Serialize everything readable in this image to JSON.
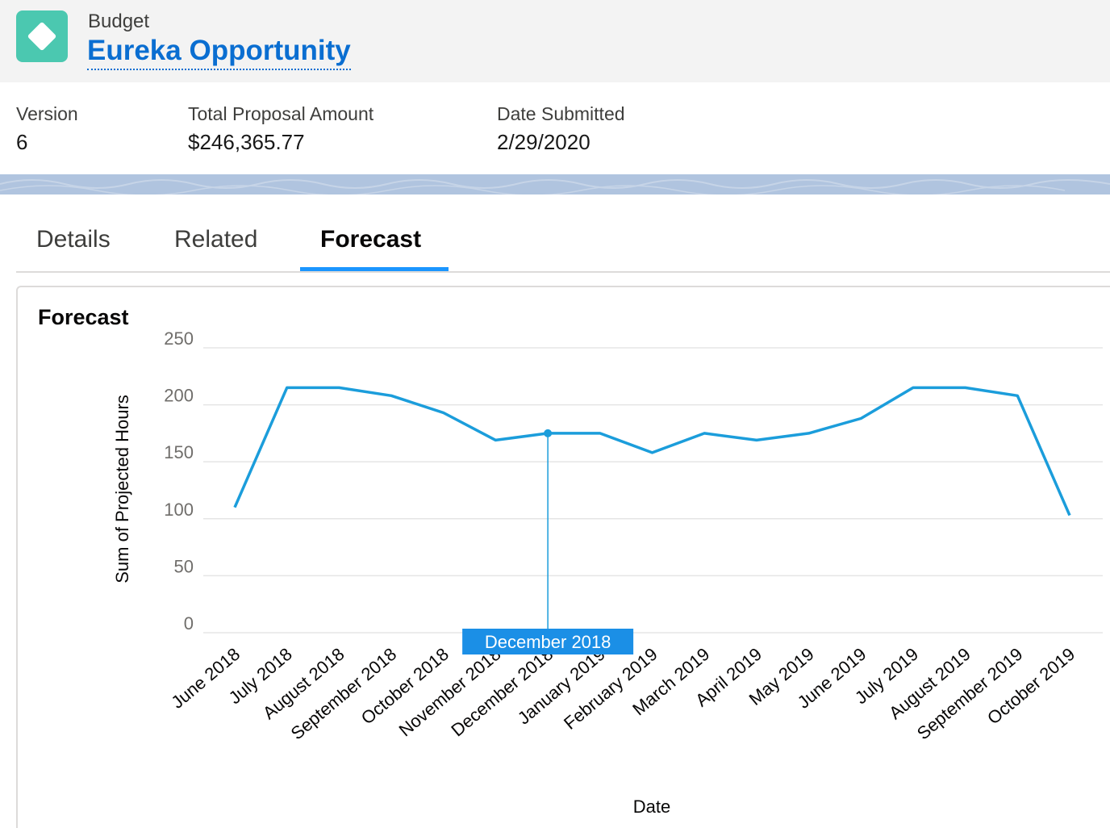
{
  "header": {
    "object_label": "Budget",
    "record_title": "Eureka Opportunity",
    "icon": "diamond-icon",
    "icon_color": "#4bc8b0"
  },
  "highlights": [
    {
      "label": "Version",
      "value": "6"
    },
    {
      "label": "Total Proposal Amount",
      "value": "$246,365.77"
    },
    {
      "label": "Date Submitted",
      "value": "2/29/2020"
    }
  ],
  "tabs": [
    {
      "label": "Details"
    },
    {
      "label": "Related"
    },
    {
      "label": "Forecast",
      "active": true
    }
  ],
  "card": {
    "title": "Forecast"
  },
  "chart_data": {
    "type": "line",
    "title": "Forecast",
    "xlabel": "Date",
    "ylabel": "Sum of Projected Hours",
    "ylim": [
      0,
      250
    ],
    "yticks": [
      0,
      50,
      100,
      150,
      200,
      250
    ],
    "grid": true,
    "color": "#1b9ddb",
    "categories": [
      "June 2018",
      "July 2018",
      "August 2018",
      "September 2018",
      "October 2018",
      "November 2018",
      "December 2018",
      "January 2019",
      "February 2019",
      "March 2019",
      "April 2019",
      "May 2019",
      "June 2019",
      "July 2019",
      "August 2019",
      "September 2019",
      "October 2019"
    ],
    "values": [
      110,
      215,
      215,
      208,
      193,
      169,
      175,
      175,
      158,
      175,
      169,
      175,
      188,
      215,
      215,
      208,
      103
    ],
    "highlighted_category": "December 2018"
  }
}
